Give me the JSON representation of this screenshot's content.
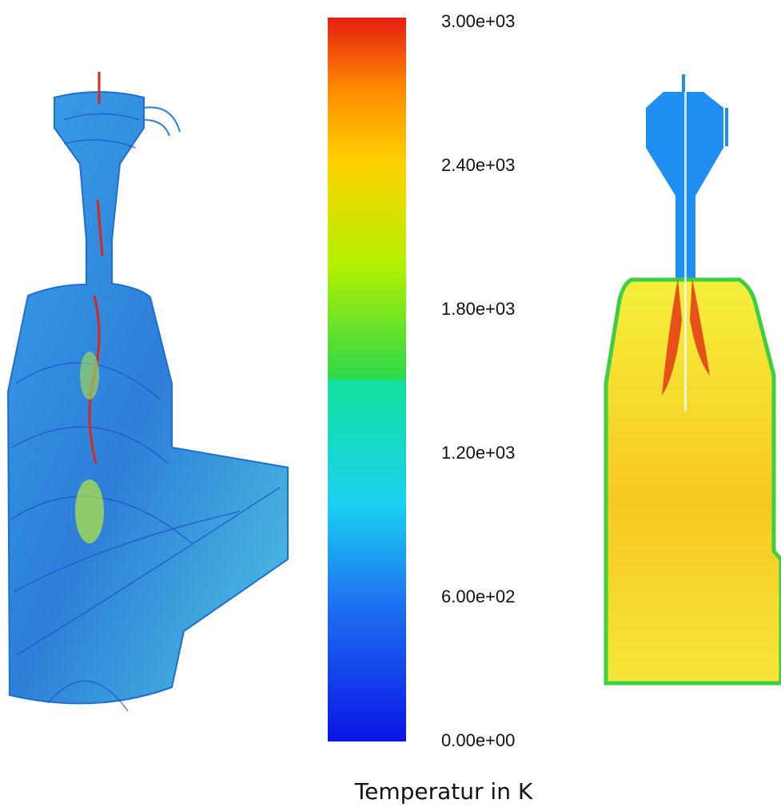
{
  "colorbar": {
    "title": "Temperatur in K",
    "lim": [
      0,
      3000
    ],
    "ticks": [
      {
        "value": 0,
        "label": "0.00e+00"
      },
      {
        "value": 600,
        "label": "6.00e+02"
      },
      {
        "value": 1200,
        "label": "1.20e+03"
      },
      {
        "value": 1800,
        "label": "1.80e+03"
      },
      {
        "value": 2400,
        "label": "2.40e+03"
      },
      {
        "value": 3000,
        "label": "3.00e+03"
      }
    ]
  }
}
